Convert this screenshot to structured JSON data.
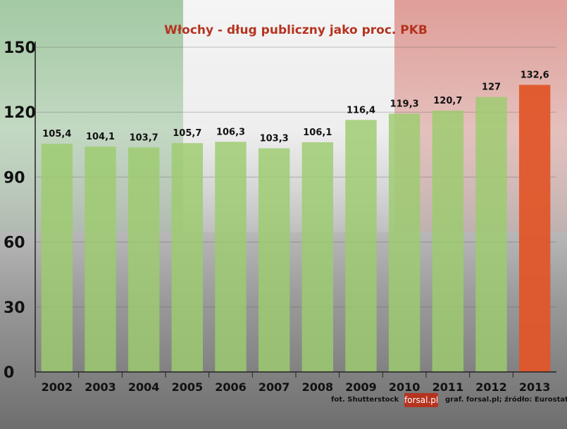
{
  "chart_data": {
    "type": "bar",
    "title": "Włochy - dług publiczny jako proc. PKB",
    "categories": [
      "2002",
      "2003",
      "2004",
      "2005",
      "2006",
      "2007",
      "2008",
      "2009",
      "2010",
      "2011",
      "2012",
      "2013"
    ],
    "values": [
      105.4,
      104.1,
      103.7,
      105.7,
      106.3,
      103.3,
      106.1,
      116.4,
      119.3,
      120.7,
      127,
      132.6
    ],
    "value_labels": [
      "105,4",
      "104,1",
      "103,7",
      "105,7",
      "106,3",
      "103,3",
      "106,1",
      "116,4",
      "119,3",
      "120,7",
      "127",
      "132,6"
    ],
    "yticks": [
      "0",
      "30",
      "60",
      "90",
      "120",
      "150"
    ],
    "ylim": [
      0,
      150
    ],
    "grid": true,
    "colors": {
      "bar": "#9ccc6e",
      "highlight_bar": "#e0562a"
    },
    "highlight_index": 11
  },
  "footer": {
    "photo_credit": "fot. Shutterstock",
    "logo_text": "forsal.pl",
    "source": "graf. forsal.pl;  źródło: Eurostat"
  }
}
